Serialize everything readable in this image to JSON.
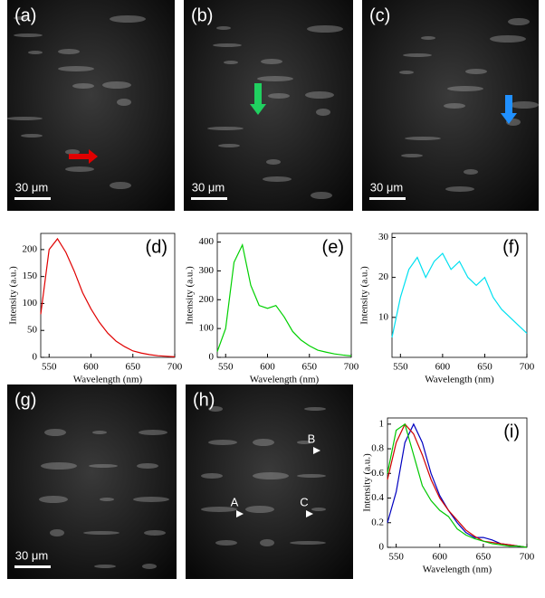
{
  "images": [
    {
      "label": "(a)",
      "scale_bar": "30 μm"
    },
    {
      "label": "(b)",
      "scale_bar": "30 μm"
    },
    {
      "label": "(c)",
      "scale_bar": "30 μm"
    },
    {
      "label": "(g)",
      "scale_bar": "30 μm"
    },
    {
      "label": "(h)",
      "markers": [
        "A",
        "B",
        "C"
      ]
    }
  ],
  "chart_data": [
    {
      "type": "line",
      "panel_label": "(d)",
      "xlabel": "Wavelength (nm)",
      "ylabel": "Intensity (a.u.)",
      "x": [
        540,
        550,
        560,
        570,
        580,
        590,
        600,
        610,
        620,
        630,
        640,
        650,
        660,
        670,
        680,
        690,
        700
      ],
      "series": [
        {
          "color": "#e00000",
          "values": [
            80,
            200,
            220,
            195,
            160,
            120,
            90,
            65,
            45,
            30,
            20,
            12,
            8,
            5,
            3,
            2,
            1
          ]
        }
      ],
      "xlim": [
        540,
        700
      ],
      "xticks": [
        550,
        600,
        650,
        700
      ],
      "ylim": [
        0,
        230
      ],
      "yticks": [
        0,
        50,
        100,
        150,
        200
      ]
    },
    {
      "type": "line",
      "panel_label": "(e)",
      "xlabel": "Wavelength (nm)",
      "ylabel": "Intensity (a.u.)",
      "x": [
        540,
        550,
        560,
        570,
        580,
        590,
        600,
        610,
        620,
        630,
        640,
        650,
        660,
        670,
        680,
        690,
        700
      ],
      "series": [
        {
          "color": "#00d000",
          "values": [
            20,
            100,
            330,
            390,
            250,
            180,
            170,
            180,
            140,
            90,
            60,
            40,
            25,
            18,
            12,
            8,
            5
          ]
        }
      ],
      "xlim": [
        540,
        700
      ],
      "xticks": [
        550,
        600,
        650,
        700
      ],
      "ylim": [
        0,
        430
      ],
      "yticks": [
        0,
        100,
        200,
        300,
        400
      ]
    },
    {
      "type": "line",
      "panel_label": "(f)",
      "xlabel": "Wavelength (nm)",
      "ylabel": "Intensity (a.u.)",
      "x": [
        540,
        550,
        560,
        570,
        580,
        590,
        600,
        610,
        620,
        630,
        640,
        650,
        660,
        670,
        680,
        690,
        700
      ],
      "series": [
        {
          "color": "#00e0f0",
          "values": [
            5,
            15,
            22,
            25,
            20,
            24,
            26,
            22,
            24,
            20,
            18,
            20,
            15,
            12,
            10,
            8,
            6
          ]
        }
      ],
      "xlim": [
        540,
        700
      ],
      "xticks": [
        550,
        600,
        650,
        700
      ],
      "ylim": [
        0,
        31
      ],
      "yticks": [
        10,
        20,
        30
      ]
    },
    {
      "type": "line",
      "panel_label": "(i)",
      "xlabel": "Wavelength (nm)",
      "ylabel": "Intensity (a.u.)",
      "x": [
        540,
        550,
        560,
        570,
        580,
        590,
        600,
        610,
        620,
        630,
        640,
        650,
        660,
        670,
        680,
        690,
        700
      ],
      "series": [
        {
          "color": "#0000c0",
          "values": [
            0.2,
            0.45,
            0.85,
            1.0,
            0.85,
            0.6,
            0.42,
            0.3,
            0.2,
            0.12,
            0.08,
            0.08,
            0.06,
            0.03,
            0.02,
            0.01,
            0
          ]
        },
        {
          "color": "#d00000",
          "values": [
            0.55,
            0.85,
            1.0,
            0.92,
            0.75,
            0.55,
            0.4,
            0.3,
            0.22,
            0.14,
            0.09,
            0.05,
            0.04,
            0.03,
            0.02,
            0.01,
            0
          ]
        },
        {
          "color": "#00c800",
          "values": [
            0.6,
            0.95,
            1.0,
            0.75,
            0.5,
            0.38,
            0.3,
            0.25,
            0.15,
            0.1,
            0.07,
            0.05,
            0.03,
            0.02,
            0.01,
            0.01,
            0
          ]
        }
      ],
      "xlim": [
        540,
        700
      ],
      "xticks": [
        550,
        600,
        650,
        700
      ],
      "ylim": [
        0,
        1.05
      ],
      "yticks": [
        0,
        0.2,
        0.4,
        0.6,
        0.8,
        1
      ]
    }
  ]
}
